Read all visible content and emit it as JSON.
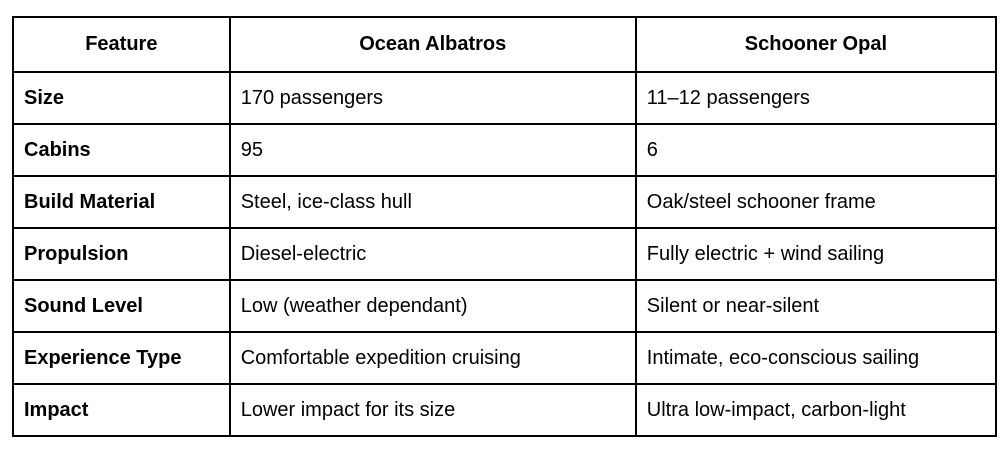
{
  "table": {
    "header": [
      "Feature",
      "Ocean Albatros",
      "Schooner Opal"
    ],
    "rows": [
      [
        "Size",
        "170 passengers",
        "11–12 passengers"
      ],
      [
        "Cabins",
        "95",
        "6"
      ],
      [
        "Build Material",
        "Steel, ice-class hull",
        "Oak/steel schooner frame"
      ],
      [
        "Propulsion",
        "Diesel-electric",
        "Fully electric + wind sailing"
      ],
      [
        "Sound Level",
        "Low (weather dependant)",
        "Silent or near-silent"
      ],
      [
        "Experience Type",
        "Comfortable expedition cruising",
        "Intimate, eco-conscious sailing"
      ],
      [
        "Impact",
        "Lower impact for its size",
        "Ultra low-impact, carbon-light"
      ]
    ]
  }
}
